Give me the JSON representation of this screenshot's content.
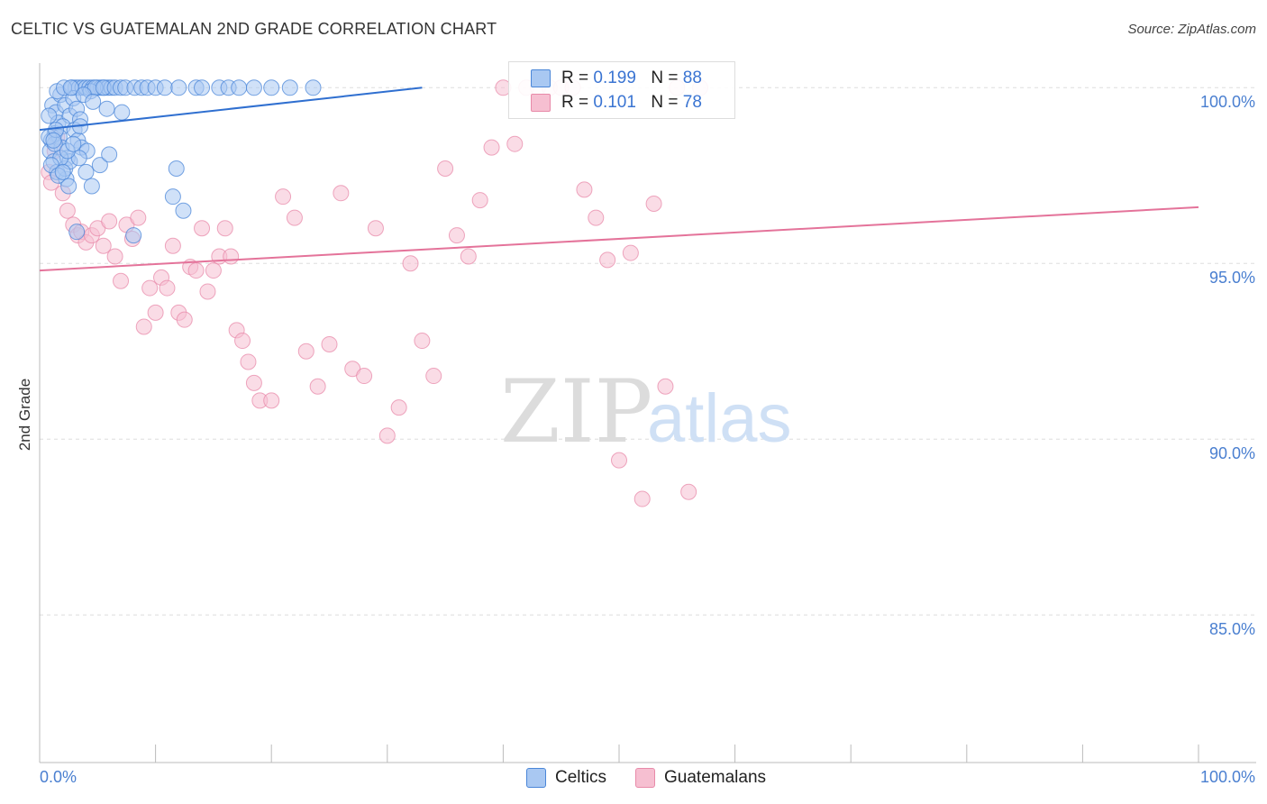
{
  "header": {
    "title": "CELTIC VS GUATEMALAN 2ND GRADE CORRELATION CHART",
    "source": "Source: ZipAtlas.com"
  },
  "watermark": {
    "zip": "ZIP",
    "atlas": "atlas"
  },
  "legend": {
    "rows": [
      {
        "r_label": "R =",
        "r_value": "0.199",
        "n_label": "N =",
        "n_value": "88"
      },
      {
        "r_label": "R =",
        "r_value": "0.101",
        "n_label": "N =",
        "n_value": "78"
      }
    ]
  },
  "bottom_legend": {
    "items": [
      "Celtics",
      "Guatemalans"
    ]
  },
  "colors": {
    "blue_fill": "#a9c8f2",
    "blue_stroke": "#4a86d8",
    "blue_line": "#2f6fd0",
    "pink_fill": "#f6bfd1",
    "pink_stroke": "#e88aa9",
    "pink_line": "#e4739a",
    "tick_text": "#4a7fd0",
    "grid": "#dddddd"
  },
  "chart_data": {
    "type": "scatter",
    "title": "CELTIC VS GUATEMALAN 2ND GRADE CORRELATION CHART",
    "xlabel": "",
    "ylabel": "2nd Grade",
    "xlim": [
      0,
      100
    ],
    "ylim": [
      80.8,
      100.7
    ],
    "x_tick_labels": [
      "0.0%",
      "100.0%"
    ],
    "y_ticks": [
      85,
      90,
      95,
      100
    ],
    "y_tick_labels": [
      "85.0%",
      "90.0%",
      "95.0%",
      "100.0%"
    ],
    "grid": true,
    "legend_position": "top-center",
    "series": [
      {
        "name": "Celtics",
        "color": "#4a86d8",
        "trend": {
          "x": [
            0,
            33
          ],
          "y": [
            98.8,
            100.0
          ]
        },
        "points": [
          [
            1.1,
            99.5
          ],
          [
            1.4,
            99.3
          ],
          [
            1.6,
            99.0
          ],
          [
            1.3,
            98.7
          ],
          [
            1.0,
            98.5
          ],
          [
            0.9,
            98.2
          ],
          [
            1.2,
            97.9
          ],
          [
            1.5,
            97.6
          ],
          [
            1.8,
            99.8
          ],
          [
            2.2,
            99.5
          ],
          [
            2.6,
            99.2
          ],
          [
            2.0,
            98.9
          ],
          [
            1.7,
            98.6
          ],
          [
            1.9,
            98.3
          ],
          [
            2.4,
            98.0
          ],
          [
            2.3,
            97.4
          ],
          [
            2.5,
            97.2
          ],
          [
            2.8,
            100.0
          ],
          [
            3.1,
            100.0
          ],
          [
            3.4,
            100.0
          ],
          [
            3.7,
            100.0
          ],
          [
            4.0,
            100.0
          ],
          [
            4.3,
            100.0
          ],
          [
            4.6,
            100.0
          ],
          [
            5.0,
            100.0
          ],
          [
            5.3,
            100.0
          ],
          [
            5.6,
            100.0
          ],
          [
            5.9,
            100.0
          ],
          [
            6.2,
            100.0
          ],
          [
            2.9,
            99.7
          ],
          [
            3.2,
            99.4
          ],
          [
            3.5,
            99.1
          ],
          [
            3.0,
            98.8
          ],
          [
            3.3,
            98.5
          ],
          [
            3.6,
            98.3
          ],
          [
            4.1,
            98.2
          ],
          [
            4.4,
            99.9
          ],
          [
            4.8,
            100.0
          ],
          [
            5.5,
            100.0
          ],
          [
            6.5,
            100.0
          ],
          [
            7.0,
            100.0
          ],
          [
            7.4,
            100.0
          ],
          [
            8.2,
            100.0
          ],
          [
            8.8,
            100.0
          ],
          [
            9.3,
            100.0
          ],
          [
            10.0,
            100.0
          ],
          [
            10.8,
            100.0
          ],
          [
            12.0,
            100.0
          ],
          [
            13.5,
            100.0
          ],
          [
            14.0,
            100.0
          ],
          [
            15.5,
            100.0
          ],
          [
            16.3,
            100.0
          ],
          [
            17.2,
            100.0
          ],
          [
            18.5,
            100.0
          ],
          [
            20.0,
            100.0
          ],
          [
            21.6,
            100.0
          ],
          [
            23.6,
            100.0
          ],
          [
            1.5,
            99.9
          ],
          [
            2.1,
            100.0
          ],
          [
            2.7,
            100.0
          ],
          [
            3.8,
            99.8
          ],
          [
            4.6,
            99.6
          ],
          [
            5.8,
            99.4
          ],
          [
            7.1,
            99.3
          ],
          [
            2.2,
            97.7
          ],
          [
            2.6,
            97.9
          ],
          [
            3.4,
            98.0
          ],
          [
            4.0,
            97.6
          ],
          [
            4.5,
            97.2
          ],
          [
            5.2,
            97.8
          ],
          [
            6.0,
            98.1
          ],
          [
            1.8,
            98.0
          ],
          [
            1.3,
            98.4
          ],
          [
            1.0,
            97.8
          ],
          [
            0.8,
            98.6
          ],
          [
            0.8,
            99.2
          ],
          [
            1.4,
            98.8
          ],
          [
            2.4,
            98.2
          ],
          [
            1.6,
            97.5
          ],
          [
            2.0,
            97.6
          ],
          [
            3.2,
            95.9
          ],
          [
            8.1,
            95.8
          ],
          [
            11.5,
            96.9
          ],
          [
            12.4,
            96.5
          ],
          [
            11.8,
            97.7
          ],
          [
            1.2,
            98.5
          ],
          [
            2.9,
            98.4
          ],
          [
            3.5,
            98.9
          ]
        ]
      },
      {
        "name": "Guatemalans",
        "color": "#e88aa9",
        "trend": {
          "x": [
            0,
            100
          ],
          "y": [
            94.8,
            96.6
          ]
        },
        "points": [
          [
            0.8,
            97.6
          ],
          [
            1.0,
            97.3
          ],
          [
            1.3,
            98.2
          ],
          [
            1.5,
            98.6
          ],
          [
            2.0,
            97.0
          ],
          [
            2.4,
            96.5
          ],
          [
            2.9,
            96.1
          ],
          [
            3.3,
            95.8
          ],
          [
            3.6,
            95.9
          ],
          [
            4.0,
            95.6
          ],
          [
            4.5,
            95.8
          ],
          [
            5.0,
            96.0
          ],
          [
            5.5,
            95.5
          ],
          [
            6.0,
            96.2
          ],
          [
            6.5,
            95.2
          ],
          [
            7.0,
            94.5
          ],
          [
            7.5,
            96.1
          ],
          [
            8.0,
            95.7
          ],
          [
            8.5,
            96.3
          ],
          [
            9.0,
            93.2
          ],
          [
            9.5,
            94.3
          ],
          [
            10.0,
            93.6
          ],
          [
            10.5,
            94.6
          ],
          [
            11.0,
            94.3
          ],
          [
            11.5,
            95.5
          ],
          [
            12.0,
            93.6
          ],
          [
            12.5,
            93.4
          ],
          [
            13.0,
            94.9
          ],
          [
            13.5,
            94.8
          ],
          [
            14.0,
            96.0
          ],
          [
            14.5,
            94.2
          ],
          [
            15.0,
            94.8
          ],
          [
            15.5,
            95.2
          ],
          [
            16.0,
            96.0
          ],
          [
            16.5,
            95.2
          ],
          [
            17.0,
            93.1
          ],
          [
            17.5,
            92.8
          ],
          [
            18.0,
            92.2
          ],
          [
            18.5,
            91.6
          ],
          [
            19.0,
            91.1
          ],
          [
            20.0,
            91.1
          ],
          [
            21.0,
            96.9
          ],
          [
            22.0,
            96.3
          ],
          [
            23.0,
            92.5
          ],
          [
            24.0,
            91.5
          ],
          [
            25.0,
            92.7
          ],
          [
            26.0,
            97.0
          ],
          [
            27.0,
            92.0
          ],
          [
            28.0,
            91.8
          ],
          [
            29.0,
            96.0
          ],
          [
            30.0,
            90.1
          ],
          [
            31.0,
            90.9
          ],
          [
            32.0,
            95.0
          ],
          [
            33.0,
            92.8
          ],
          [
            34.0,
            91.8
          ],
          [
            35.0,
            97.7
          ],
          [
            36.0,
            95.8
          ],
          [
            37.0,
            95.2
          ],
          [
            38.0,
            96.8
          ],
          [
            39.0,
            98.3
          ],
          [
            40.0,
            100.0
          ],
          [
            41.0,
            98.4
          ],
          [
            42.0,
            100.0
          ],
          [
            43.0,
            100.0
          ],
          [
            44.0,
            100.0
          ],
          [
            45.0,
            100.0
          ],
          [
            46.0,
            100.0
          ],
          [
            47.0,
            97.1
          ],
          [
            48.0,
            96.3
          ],
          [
            49.0,
            95.1
          ],
          [
            50.0,
            89.4
          ],
          [
            51.0,
            95.3
          ],
          [
            52.0,
            88.3
          ],
          [
            53.0,
            96.7
          ],
          [
            54.0,
            91.5
          ],
          [
            55.0,
            100.0
          ],
          [
            56.0,
            88.5
          ],
          [
            57.0,
            100.0
          ]
        ]
      }
    ]
  }
}
